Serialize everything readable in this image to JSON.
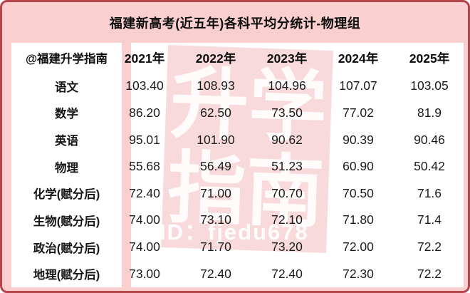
{
  "title": "福建新高考(近五年)各科平均分统计-物理组",
  "watermark": {
    "line1": "升学",
    "line2": "指南",
    "id_text": "ID：fjedu678"
  },
  "colors": {
    "page_bg": "#f9cfd0",
    "border": "#b4454a",
    "panel_bg": "#ffffff",
    "watermark_bg": "#f9dadc",
    "watermark_text": "#ffffff",
    "text": "#161616"
  },
  "chart_data": {
    "type": "table",
    "title": "福建新高考(近五年)各科平均分统计-物理组",
    "source_label": "@福建升学指南",
    "columns": [
      "2021年",
      "2022年",
      "2023年",
      "2024年",
      "2025年"
    ],
    "rows": [
      {
        "label": "语文",
        "values": [
          "103.40",
          "108.93",
          "104.96",
          "107.07",
          "103.05"
        ]
      },
      {
        "label": "数学",
        "values": [
          "86.20",
          "62.50",
          "73.50",
          "77.02",
          "81.9"
        ]
      },
      {
        "label": "英语",
        "values": [
          "95.01",
          "101.90",
          "90.62",
          "90.39",
          "90.46"
        ]
      },
      {
        "label": "物理",
        "values": [
          "55.68",
          "56.49",
          "51.23",
          "60.90",
          "50.42"
        ]
      },
      {
        "label": "化学(赋分后)",
        "values": [
          "72.40",
          "71.00",
          "70.70",
          "70.50",
          "71.6"
        ]
      },
      {
        "label": "生物(赋分后)",
        "values": [
          "74.00",
          "73.10",
          "72.10",
          "71.80",
          "71.4"
        ]
      },
      {
        "label": "政治(赋分后)",
        "values": [
          "74.00",
          "71.70",
          "73.20",
          "72.00",
          "72.2"
        ]
      },
      {
        "label": "地理(赋分后)",
        "values": [
          "73.00",
          "72.40",
          "72.40",
          "72.30",
          "72.2"
        ]
      }
    ]
  }
}
